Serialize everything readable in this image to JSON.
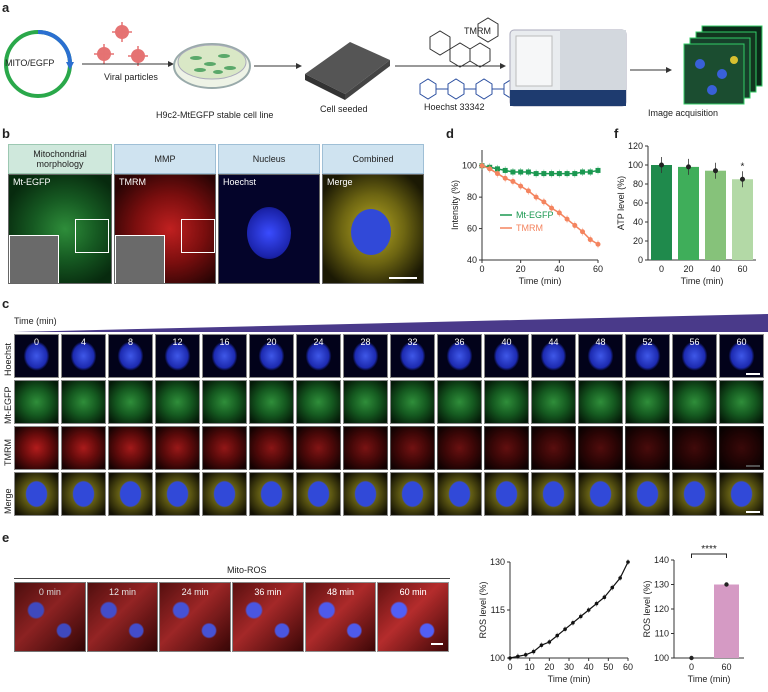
{
  "panel_letters": {
    "a": "a",
    "b": "b",
    "c": "c",
    "d": "d",
    "e": "e",
    "f": "f"
  },
  "panel_a": {
    "plasmid": "MITO/EGFP",
    "viral": "Viral particles",
    "cell_line": "H9c2-MtEGFP stable cell line",
    "seeded": "Cell seeded",
    "tmrm": "TMRM",
    "hoechst": "Hoechst 33342",
    "acq": "Image acquisition"
  },
  "panel_b": {
    "headers": [
      "Mitochondrial morphology",
      "MMP",
      "Nucleus",
      "Combined"
    ],
    "labels": [
      "Mt-EGFP",
      "TMRM",
      "Hoechst",
      "Merge"
    ]
  },
  "panel_c": {
    "time_label": "Time (min)",
    "times": [
      "0",
      "4",
      "8",
      "12",
      "16",
      "20",
      "24",
      "28",
      "32",
      "36",
      "40",
      "44",
      "48",
      "52",
      "56",
      "60"
    ],
    "rows": [
      "Hoechst",
      "Mt-EGFP",
      "TMRM",
      "Merge"
    ]
  },
  "panel_e": {
    "title": "Mito-ROS",
    "times": [
      "0 min",
      "12 min",
      "24 min",
      "36 min",
      "48 min",
      "60 min"
    ],
    "significance": "****"
  },
  "colors": {
    "green": "#1a9850",
    "orange": "#f4845f",
    "purple": "#7b2d7b",
    "pink": "#d59ac4"
  },
  "chart_data": [
    {
      "id": "d",
      "type": "line",
      "xlabel": "Time (min)",
      "ylabel": "Intensity (%)",
      "xlim": [
        0,
        60
      ],
      "ylim": [
        40,
        110
      ],
      "xticks": [
        0,
        20,
        40,
        60
      ],
      "yticks": [
        40,
        60,
        80,
        100
      ],
      "x": [
        0,
        4,
        8,
        12,
        16,
        20,
        24,
        28,
        32,
        36,
        40,
        44,
        48,
        52,
        56,
        60
      ],
      "series": [
        {
          "name": "Mt-EGFP",
          "color": "#1a9850",
          "values": [
            100,
            99,
            98,
            97,
            96,
            96,
            96,
            95,
            95,
            95,
            95,
            95,
            95,
            96,
            96,
            97
          ]
        },
        {
          "name": "TMRM",
          "color": "#f4845f",
          "values": [
            100,
            98,
            95,
            92,
            90,
            87,
            84,
            80,
            77,
            73,
            70,
            66,
            62,
            58,
            53,
            50
          ]
        }
      ]
    },
    {
      "id": "f",
      "type": "bar",
      "xlabel": "Time (min)",
      "ylabel": "ATP level (%)",
      "ylim": [
        0,
        120
      ],
      "yticks": [
        0,
        20,
        40,
        60,
        80,
        100,
        120
      ],
      "categories": [
        "0",
        "20",
        "40",
        "60"
      ],
      "values": [
        100,
        98,
        94,
        85
      ],
      "colors": [
        "#1f8a4c",
        "#3fae5a",
        "#86c27a",
        "#b3d9a6"
      ],
      "annotations": [
        "",
        "",
        "",
        "*"
      ]
    },
    {
      "id": "e-line",
      "type": "line",
      "xlabel": "Time (min)",
      "ylabel": "ROS level (%)",
      "xlim": [
        0,
        60
      ],
      "ylim": [
        100,
        130
      ],
      "xticks": [
        0,
        10,
        20,
        30,
        40,
        50,
        60
      ],
      "yticks": [
        100,
        115,
        130
      ],
      "x": [
        0,
        4,
        8,
        12,
        16,
        20,
        24,
        28,
        32,
        36,
        40,
        44,
        48,
        52,
        56,
        60
      ],
      "values": [
        100,
        100.5,
        101,
        102,
        104,
        105,
        107,
        109,
        111,
        113,
        115,
        117,
        119,
        122,
        125,
        130
      ]
    },
    {
      "id": "e-bar",
      "type": "bar",
      "xlabel": "Time (min)",
      "ylabel": "ROS level (%)",
      "ylim": [
        100,
        140
      ],
      "yticks": [
        100,
        110,
        120,
        130,
        140
      ],
      "categories": [
        "0",
        "60"
      ],
      "values": [
        100,
        130
      ],
      "colors": [
        "#7b2d7b",
        "#d59ac4"
      ]
    }
  ]
}
